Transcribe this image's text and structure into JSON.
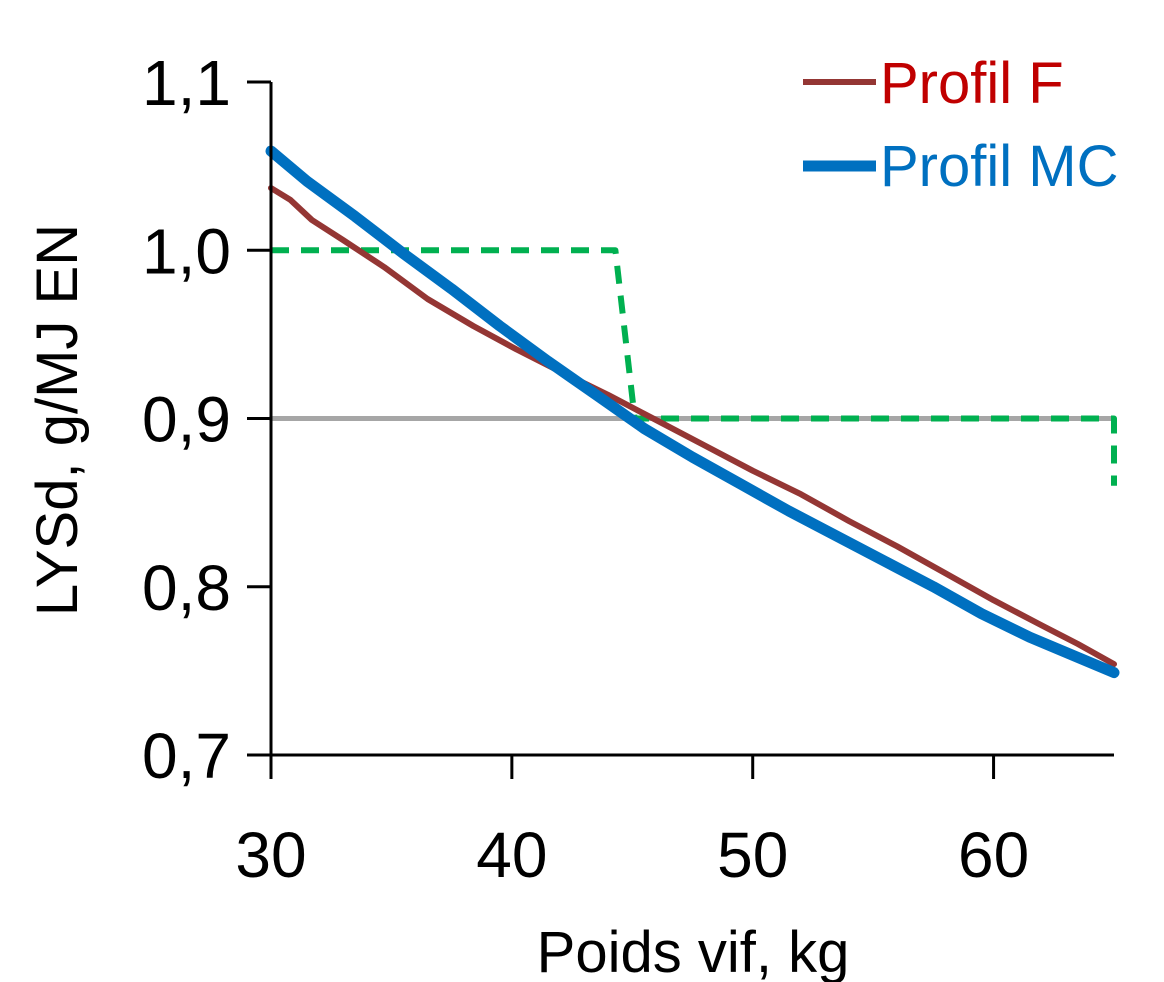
{
  "chart_data": {
    "type": "line",
    "title": "",
    "xlabel": "Poids vif, kg",
    "ylabel": "LYSd, g/MJ EN",
    "xlim": [
      30,
      65
    ],
    "ylim": [
      0.7,
      1.1
    ],
    "x_ticks": [
      30,
      40,
      50,
      60
    ],
    "x_tick_labels": [
      "30",
      "40",
      "50",
      "60"
    ],
    "y_ticks": [
      0.7,
      0.8,
      0.9,
      1.0,
      1.1
    ],
    "y_tick_labels": [
      "0,7",
      "0,8",
      "0,9",
      "1,0",
      "1,1"
    ],
    "grid": false,
    "legend_position": "top-right",
    "series": [
      {
        "name": "Profil F",
        "color": "#943634",
        "label_color": "#c00000",
        "style": "solid",
        "points": [
          [
            30,
            1.037
          ],
          [
            30.8,
            1.03
          ],
          [
            31.7,
            1.018
          ],
          [
            33,
            1.006
          ],
          [
            34.7,
            0.99
          ],
          [
            36.5,
            0.971
          ],
          [
            38.4,
            0.955
          ],
          [
            40.2,
            0.941
          ],
          [
            42,
            0.928
          ],
          [
            44,
            0.914
          ],
          [
            46,
            0.899
          ],
          [
            48,
            0.884
          ],
          [
            50,
            0.869
          ],
          [
            52,
            0.855
          ],
          [
            54,
            0.839
          ],
          [
            56,
            0.824
          ],
          [
            58,
            0.808
          ],
          [
            60,
            0.792
          ],
          [
            62,
            0.777
          ],
          [
            63.5,
            0.766
          ],
          [
            65,
            0.754
          ]
        ]
      },
      {
        "name": "Profil MC",
        "color": "#0070c0",
        "label_color": "#0070c0",
        "style": "solid-thick",
        "points": [
          [
            30,
            1.059
          ],
          [
            31.5,
            1.041
          ],
          [
            33.5,
            1.02
          ],
          [
            35.5,
            0.998
          ],
          [
            37.5,
            0.977
          ],
          [
            39.5,
            0.955
          ],
          [
            41.5,
            0.934
          ],
          [
            43.5,
            0.914
          ],
          [
            45.5,
            0.894
          ],
          [
            47.5,
            0.877
          ],
          [
            49.5,
            0.861
          ],
          [
            51.5,
            0.845
          ],
          [
            53.5,
            0.83
          ],
          [
            55.5,
            0.815
          ],
          [
            57.5,
            0.8
          ],
          [
            59.5,
            0.784
          ],
          [
            61.5,
            0.77
          ],
          [
            63.5,
            0.758
          ],
          [
            65,
            0.749
          ]
        ]
      },
      {
        "name": "",
        "color": "#00b050",
        "style": "dashed",
        "points": [
          [
            30,
            1.0
          ],
          [
            44.3,
            1.0
          ],
          [
            45.1,
            0.9
          ],
          [
            65,
            0.9
          ],
          [
            65,
            0.86
          ]
        ]
      },
      {
        "name": "",
        "color": "#a6a6a6",
        "style": "solid-gray",
        "points": [
          [
            30,
            0.9
          ],
          [
            65,
            0.9
          ]
        ]
      }
    ]
  }
}
